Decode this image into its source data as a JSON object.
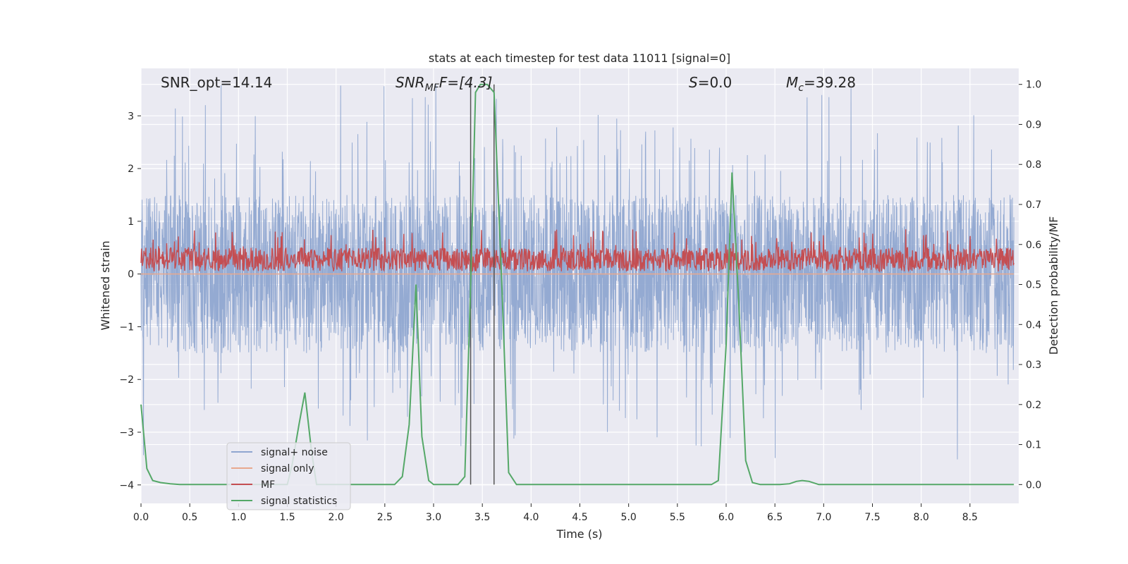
{
  "chart_data": {
    "type": "line",
    "title": "stats at each timestep for test data 11011 [signal=0]",
    "xlabel": "Time (s)",
    "ylabel": "Whitened strain",
    "y2label": "Detection probability/MF",
    "xlim": [
      0.0,
      9.0
    ],
    "ylim": [
      -4.35,
      3.9
    ],
    "y2lim": [
      -0.047,
      1.04
    ],
    "x_ticks": [
      "0.0",
      "0.5",
      "1.0",
      "1.5",
      "2.0",
      "2.5",
      "3.0",
      "3.5",
      "4.0",
      "4.5",
      "5.0",
      "5.5",
      "6.0",
      "6.5",
      "7.0",
      "7.5",
      "8.0",
      "8.5"
    ],
    "x_tick_values": [
      0.0,
      0.5,
      1.0,
      1.5,
      2.0,
      2.5,
      3.0,
      3.5,
      4.0,
      4.5,
      5.0,
      5.5,
      6.0,
      6.5,
      7.0,
      7.5,
      8.0,
      8.5
    ],
    "y_ticks": [
      "3",
      "2",
      "1",
      "0",
      "−1",
      "−2",
      "−3",
      "−4"
    ],
    "y_tick_values": [
      3,
      2,
      1,
      0,
      -1,
      -2,
      -3,
      -4
    ],
    "y2_ticks": [
      "1.0",
      "0.9",
      "0.8",
      "0.7",
      "0.6",
      "0.5",
      "0.4",
      "0.3",
      "0.2",
      "0.1",
      "0.0"
    ],
    "y2_tick_values": [
      1.0,
      0.9,
      0.8,
      0.7,
      0.6,
      0.5,
      0.4,
      0.3,
      0.2,
      0.1,
      0.0
    ],
    "annotations": {
      "snr_opt_label": "SNR_opt=14.14",
      "snr_mf_base": "SNR",
      "snr_mf_sub": "MF",
      "snr_mf_value": "F=[4.3]",
      "s_label": "S",
      "s_value": "=0.0",
      "mc_base": "M",
      "mc_sub": "c",
      "mc_value": "=39.28"
    },
    "vertical_markers": [
      3.38,
      3.62
    ],
    "series": [
      {
        "name": "signal+ noise",
        "color": "#8fa6d0",
        "note": "noise band ~ ±1.5 with spikes to ±3.5"
      },
      {
        "name": "signal only",
        "color": "#e8a88e",
        "values_constant": 0.0
      },
      {
        "name": "MF",
        "color": "#c44e52",
        "range": [
          0.0,
          0.85
        ]
      },
      {
        "name": "signal statistics",
        "color": "#55a868",
        "axis": "right",
        "x": [
          0.0,
          0.06,
          0.12,
          0.2,
          0.3,
          0.4,
          1.5,
          1.55,
          1.62,
          1.68,
          1.75,
          1.8,
          2.6,
          2.68,
          2.75,
          2.82,
          2.88,
          2.95,
          3.0,
          3.1,
          3.25,
          3.32,
          3.38,
          3.43,
          3.48,
          3.55,
          3.62,
          3.7,
          3.77,
          3.85,
          4.1,
          5.85,
          5.92,
          6.0,
          6.06,
          6.13,
          6.2,
          6.27,
          6.35,
          6.55,
          6.65,
          6.72,
          6.78,
          6.85,
          6.95,
          8.95
        ],
        "y": [
          0.2,
          0.04,
          0.01,
          0.005,
          0.002,
          0.0,
          0.0,
          0.05,
          0.15,
          0.23,
          0.08,
          0.0,
          0.0,
          0.02,
          0.15,
          0.5,
          0.12,
          0.01,
          0.0,
          0.0,
          0.0,
          0.02,
          0.5,
          0.98,
          1.0,
          1.0,
          0.98,
          0.5,
          0.03,
          0.0,
          0.0,
          0.0,
          0.01,
          0.35,
          0.78,
          0.45,
          0.06,
          0.005,
          0.0,
          0.0,
          0.002,
          0.008,
          0.01,
          0.008,
          0.0,
          0.0
        ]
      }
    ],
    "legend_position": "lower-left"
  },
  "colors": {
    "background": "#eaeaf2",
    "grid": "#ffffff",
    "noise": "#8fa6d0",
    "signal_only": "#e8a88e",
    "mf": "#c44e52",
    "stat": "#55a868",
    "marker": "#555555"
  }
}
